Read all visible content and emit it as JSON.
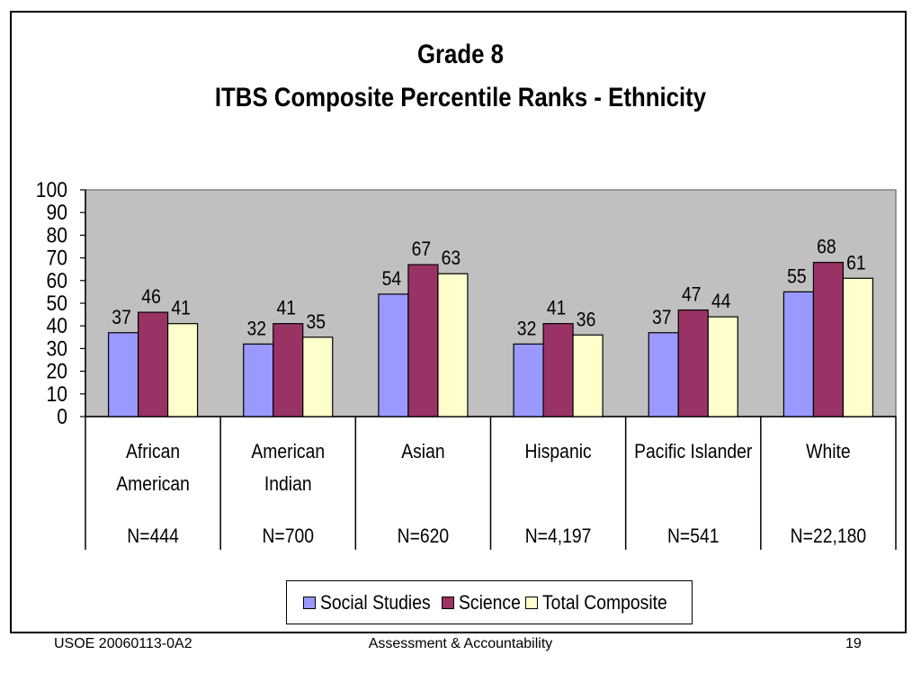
{
  "chart_data": {
    "type": "bar",
    "title": "Grade 8",
    "subtitle": "ITBS Composite Percentile Ranks - Ethnicity",
    "categories": [
      {
        "label_lines": [
          "African",
          "American"
        ],
        "n": "N=444"
      },
      {
        "label_lines": [
          "American",
          "Indian"
        ],
        "n": "N=700"
      },
      {
        "label_lines": [
          "Asian"
        ],
        "n": "N=620"
      },
      {
        "label_lines": [
          "Hispanic"
        ],
        "n": "N=4,197"
      },
      {
        "label_lines": [
          "Pacific Islander"
        ],
        "n": "N=541"
      },
      {
        "label_lines": [
          "White"
        ],
        "n": "N=22,180"
      }
    ],
    "series": [
      {
        "name": "Social Studies",
        "color": "#9999ff",
        "values": [
          37,
          32,
          54,
          32,
          37,
          55
        ]
      },
      {
        "name": "Science",
        "color": "#993366",
        "values": [
          46,
          41,
          67,
          41,
          47,
          68
        ]
      },
      {
        "name": "Total Composite",
        "color": "#ffffcc",
        "values": [
          41,
          35,
          63,
          36,
          44,
          61
        ]
      }
    ],
    "ylim": [
      0,
      100
    ],
    "yticks": [
      0,
      10,
      20,
      30,
      40,
      50,
      60,
      70,
      80,
      90,
      100
    ],
    "plot_background": "#c0c0c0",
    "grid": false,
    "legend_position": "bottom",
    "data_labels": true
  },
  "footer": {
    "left": "USOE 20060113-0A2",
    "center": "Assessment & Accountability",
    "right": "19"
  }
}
